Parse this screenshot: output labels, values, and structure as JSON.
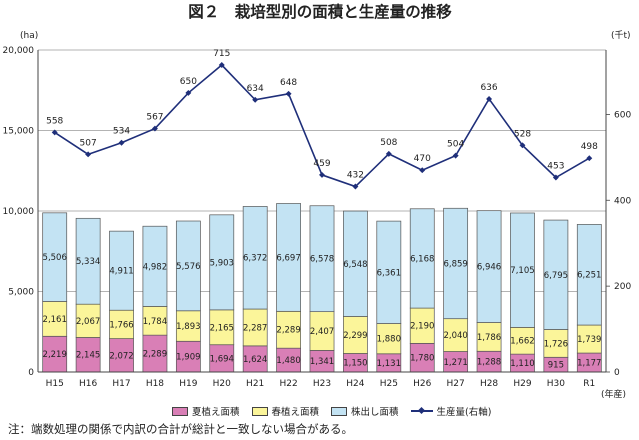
{
  "chart_data": {
    "type": "bar",
    "title": "図２　栽培型別の面積と生産量の推移",
    "left_unit": "(ha)",
    "right_unit": "(千t)",
    "x_unit": "(年産)",
    "categories": [
      "H15",
      "H16",
      "H17",
      "H18",
      "H19",
      "H20",
      "H21",
      "H22",
      "H23",
      "H24",
      "H25",
      "H26",
      "H27",
      "H28",
      "H29",
      "H30",
      "R1"
    ],
    "ylim": [
      0,
      20000
    ],
    "y_ticks": [
      "0",
      "5,000",
      "10,000",
      "15,000",
      "20,000"
    ],
    "y2lim": [
      0,
      750
    ],
    "y2_ticks": [
      "0",
      "200",
      "400",
      "600"
    ],
    "stack_order": [
      "夏植え面積",
      "春植え面積",
      "株出し面積"
    ],
    "series": [
      {
        "name": "夏植え面積",
        "kind": "bar",
        "color": "#d97fb6",
        "values": [
          2219,
          2145,
          2072,
          2289,
          1909,
          1694,
          1624,
          1480,
          1341,
          1150,
          1131,
          1780,
          1271,
          1288,
          1110,
          915,
          1177
        ],
        "labels": [
          "2,219",
          "2,145",
          "2,072",
          "2,289",
          "1,909",
          "1,694",
          "1,624",
          "1,480",
          "1,341",
          "1,150",
          "1,131",
          "1,780",
          "1,271",
          "1,288",
          "1,110",
          "915",
          "1,177"
        ]
      },
      {
        "name": "春植え面積",
        "kind": "bar",
        "color": "#fbf59a",
        "values": [
          2161,
          2067,
          1766,
          1784,
          1893,
          2165,
          2287,
          2289,
          2407,
          2299,
          1880,
          2190,
          2040,
          1786,
          1662,
          1726,
          1739
        ],
        "labels": [
          "2,161",
          "2,067",
          "1,766",
          "1,784",
          "1,893",
          "2,165",
          "2,287",
          "2,289",
          "2,407",
          "2,299",
          "1,880",
          "2,190",
          "2,040",
          "1,786",
          "1,662",
          "1,726",
          "1,739"
        ]
      },
      {
        "name": "株出し面積",
        "kind": "bar",
        "color": "#c3e3f3",
        "values": [
          5506,
          5334,
          4911,
          4982,
          5576,
          5903,
          6372,
          6697,
          6578,
          6548,
          6361,
          6168,
          6859,
          6946,
          7105,
          6795,
          6251
        ],
        "labels": [
          "5,506",
          "5,334",
          "4,911",
          "4,982",
          "5,576",
          "5,903",
          "6,372",
          "6,697",
          "6,578",
          "6,548",
          "6,361",
          "6,168",
          "6,859",
          "6,946",
          "7,105",
          "6,795",
          "6,251"
        ]
      },
      {
        "name": "生産量(右軸)",
        "kind": "line",
        "axis": "right",
        "color": "#1f2f7a",
        "values": [
          558,
          507,
          534,
          567,
          650,
          715,
          634,
          648,
          459,
          432,
          508,
          470,
          504,
          636,
          528,
          453,
          498
        ],
        "labels": [
          "558",
          "507",
          "534",
          "567",
          "650",
          "715",
          "634",
          "648",
          "459",
          "432",
          "508",
          "470",
          "504",
          "636",
          "528",
          "453",
          "498"
        ]
      }
    ],
    "grid": true,
    "legend_position": "bottom"
  },
  "note": "注：端数処理の関係で内訳の合計が総計と一致しない場合がある。"
}
